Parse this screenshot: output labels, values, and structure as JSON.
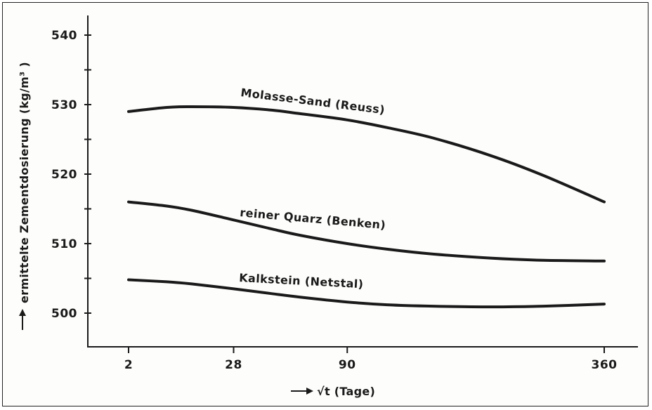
{
  "chart_data": {
    "type": "line",
    "title": "",
    "xlabel": "√t (Tage)",
    "ylabel": "ermittelte Zementdosierung (kg/m³ )",
    "x_scale": "sqrt",
    "x_ticks": [
      2,
      28,
      90,
      360
    ],
    "xlim": [
      2,
      360
    ],
    "ylim": [
      500,
      540
    ],
    "y_ticks": [
      500,
      510,
      520,
      530,
      540
    ],
    "grid": false,
    "legend": "none",
    "line_color": "#1a1a1a",
    "series": [
      {
        "name": "Molasse-Sand (Reuss)",
        "x": [
          2,
          8,
          14,
          28,
          45,
          60,
          90,
          120,
          160,
          220,
          280,
          360
        ],
        "y": [
          529,
          529.6,
          529.7,
          529.6,
          529.2,
          528.7,
          527.8,
          526.7,
          525.2,
          522.6,
          519.8,
          516
        ]
      },
      {
        "name": "reiner Quarz (Benken)",
        "x": [
          2,
          8,
          14,
          28,
          45,
          60,
          90,
          120,
          160,
          220,
          280,
          360
        ],
        "y": [
          516,
          515.4,
          514.8,
          513.4,
          512.1,
          511.2,
          510,
          509.2,
          508.5,
          507.9,
          507.6,
          507.5
        ]
      },
      {
        "name": "Kalkstein (Netstal)",
        "x": [
          2,
          8,
          14,
          28,
          45,
          60,
          90,
          120,
          160,
          220,
          280,
          360
        ],
        "y": [
          504.8,
          504.5,
          504.2,
          503.5,
          502.8,
          502.3,
          501.6,
          501.2,
          501,
          500.9,
          501,
          501.3
        ]
      }
    ]
  }
}
